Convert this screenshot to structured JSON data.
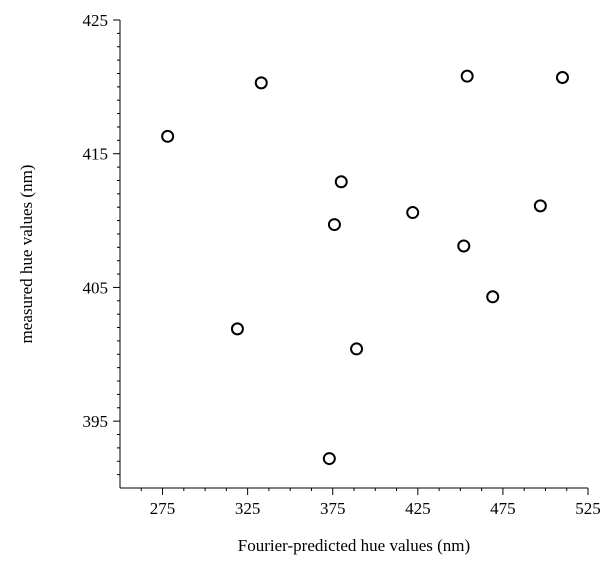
{
  "chart_data": {
    "type": "scatter",
    "title": "",
    "xlabel": "Fourier-predicted hue values (nm)",
    "ylabel": "measured hue values (nm)",
    "xlim": [
      250,
      525
    ],
    "ylim": [
      390,
      425
    ],
    "xticks": [
      275,
      325,
      375,
      425,
      475,
      525
    ],
    "yticks": [
      395,
      405,
      415,
      425
    ],
    "x_tick_labels": [
      "275",
      "325",
      "375",
      "425",
      "475",
      "525"
    ],
    "y_tick_labels": [
      "395",
      "405",
      "415",
      "425"
    ],
    "grid": false,
    "legend": "none",
    "marker": "open-circle",
    "marker_color": "#000000",
    "series": [
      {
        "points": [
          {
            "x": 278,
            "y": 416.3
          },
          {
            "x": 319,
            "y": 401.9
          },
          {
            "x": 333,
            "y": 420.3
          },
          {
            "x": 373,
            "y": 392.2
          },
          {
            "x": 376,
            "y": 409.7
          },
          {
            "x": 380,
            "y": 412.9
          },
          {
            "x": 389,
            "y": 400.4
          },
          {
            "x": 422,
            "y": 410.6
          },
          {
            "x": 452,
            "y": 408.1
          },
          {
            "x": 454,
            "y": 420.8
          },
          {
            "x": 469,
            "y": 404.3
          },
          {
            "x": 497,
            "y": 411.1
          },
          {
            "x": 510,
            "y": 420.7
          }
        ]
      }
    ]
  }
}
